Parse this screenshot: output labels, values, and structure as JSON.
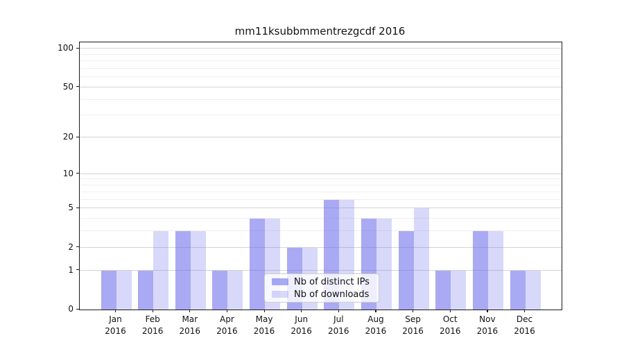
{
  "title": "mm11ksubbmmentrezgcdf 2016",
  "chart_data": {
    "type": "bar",
    "title": "mm11ksubbmmentrezgcdf 2016",
    "categories": [
      "Jan",
      "Feb",
      "Mar",
      "Apr",
      "May",
      "Jun",
      "Jul",
      "Aug",
      "Sep",
      "Oct",
      "Nov",
      "Dec"
    ],
    "year_label": "2016",
    "series": [
      {
        "name": "Nb of distinct IPs",
        "color": "rgba(99,99,235,0.55)",
        "values": [
          1,
          1,
          3,
          1,
          4,
          2,
          6,
          4,
          3,
          1,
          3,
          1
        ]
      },
      {
        "name": "Nb of downloads",
        "color": "rgba(99,99,235,0.25)",
        "values": [
          1,
          3,
          3,
          1,
          4,
          2,
          6,
          4,
          5,
          1,
          3,
          1
        ]
      }
    ],
    "yscale": "log1p",
    "ylim": [
      0,
      112
    ],
    "y_major_ticks": [
      0,
      1,
      2,
      5,
      10,
      20,
      50,
      100
    ],
    "y_minor_ticks": [
      3,
      4,
      6,
      7,
      8,
      9,
      30,
      40,
      60,
      70,
      80,
      90
    ],
    "grid": true,
    "legend_position": "lower center"
  },
  "colors": {
    "grid_major": "#d4d4d4",
    "grid_minor": "#efefef",
    "spine": "#1a1a1a"
  }
}
